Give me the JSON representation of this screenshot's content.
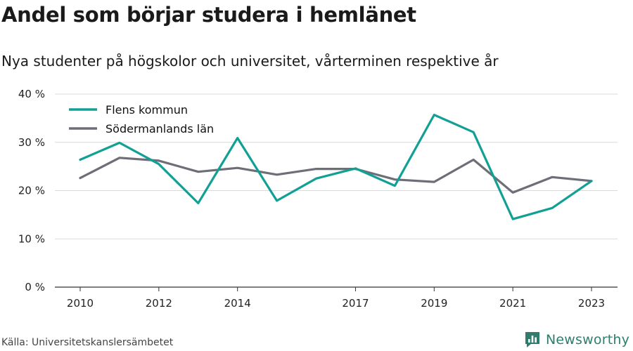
{
  "title": "Andel som börjar studera i hemlänet",
  "subtitle": "Nya studenter på högskolor och universitet, vårterminen respektive år",
  "source": "Källa: Universitetskanslersämbetet",
  "brand": "Newsworthy",
  "colors": {
    "flen": "#12a095",
    "lan": "#6e6e78",
    "grid": "#d9d9d9",
    "axis": "#333333",
    "brand": "#2f7d6d"
  },
  "chart_data": {
    "type": "line",
    "x": [
      2010,
      2011,
      2012,
      2013,
      2014,
      2015,
      2016,
      2017,
      2018,
      2019,
      2020,
      2021,
      2022,
      2023
    ],
    "x_ticks": [
      2010,
      2012,
      2014,
      2017,
      2019,
      2021,
      2023
    ],
    "y_ticks": [
      0,
      10,
      20,
      30,
      40
    ],
    "y_tick_labels": [
      "0 %",
      "10 %",
      "20 %",
      "30 %",
      "40 %"
    ],
    "ylim": [
      0,
      40
    ],
    "grid": true,
    "legend_position": "top-left",
    "series": [
      {
        "name": "Flens kommun",
        "color": "#12a095",
        "values": [
          26.4,
          29.9,
          25.5,
          17.4,
          30.9,
          17.9,
          22.5,
          24.6,
          21.0,
          35.7,
          32.1,
          14.1,
          16.4,
          22.0
        ]
      },
      {
        "name": "Södermanlands län",
        "color": "#6e6e78",
        "values": [
          22.6,
          26.8,
          26.2,
          23.9,
          24.7,
          23.3,
          24.5,
          24.5,
          22.3,
          21.8,
          26.4,
          19.6,
          22.8,
          22.0
        ]
      }
    ]
  }
}
